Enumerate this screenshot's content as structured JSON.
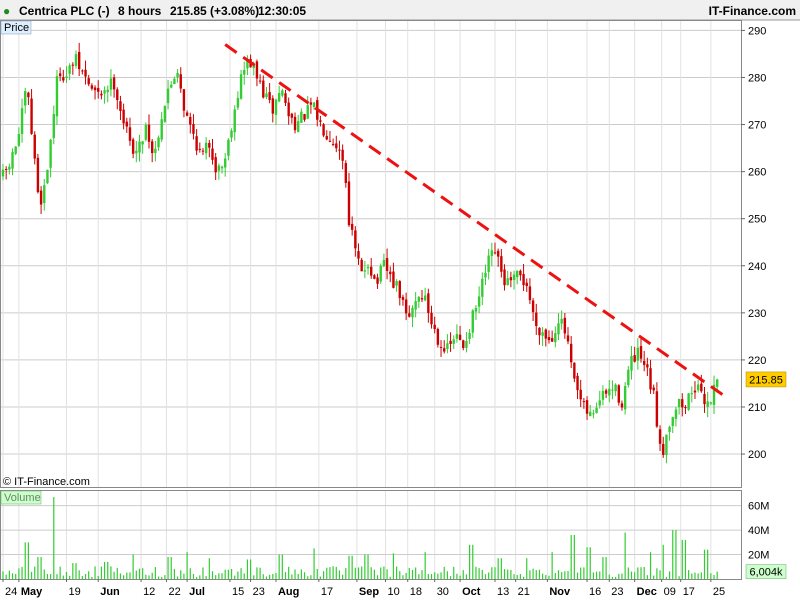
{
  "header": {
    "title": "Centrica PLC (-)",
    "timeframe": "8 hours",
    "quote": "215.85 (+3.08%)",
    "time": "12:30:05",
    "brand": "IT-Finance.com"
  },
  "labels": {
    "price_panel": "Price",
    "volume_panel": "Volume",
    "copyright": "© IT-Finance.com"
  },
  "colors": {
    "up": "#33cc33",
    "down": "#cc0000",
    "trendline": "#ee1111",
    "volume": "#33cc33",
    "price_tag": "#ffcc00",
    "volume_tag": "#ccffcc",
    "panel_label_bg": "#ddeeff",
    "volume_label_bg": "#ccffcc",
    "grid": "#cccccc"
  },
  "chart_data": [
    {
      "type": "candlestick",
      "title": "Centrica PLC (-)",
      "ylabel": "Price",
      "ylim": [
        193,
        292
      ],
      "xlim": [
        0,
        46.5
      ],
      "grid": true,
      "y_ticks": [
        200,
        210,
        220,
        230,
        240,
        250,
        260,
        270,
        280,
        290
      ],
      "x_ticks": [
        {
          "label": "24",
          "week": 0
        },
        {
          "label": "May",
          "week": 1
        },
        {
          "label": "19",
          "week": 4
        },
        {
          "label": "Jun",
          "week": 6
        },
        {
          "label": "12",
          "week": 8.7
        },
        {
          "label": "22",
          "week": 10.3
        },
        {
          "label": "Jul",
          "week": 11.6
        },
        {
          "label": "15",
          "week": 14.3
        },
        {
          "label": "23",
          "week": 15.6
        },
        {
          "label": "Aug",
          "week": 17.2
        },
        {
          "label": "17",
          "week": 19.9
        },
        {
          "label": "Sep",
          "week": 22.3
        },
        {
          "label": "10",
          "week": 24.1
        },
        {
          "label": "18",
          "week": 25.5
        },
        {
          "label": "30",
          "week": 27.2
        },
        {
          "label": "Oct",
          "week": 28.8
        },
        {
          "label": "13",
          "week": 31
        },
        {
          "label": "21",
          "week": 32.3
        },
        {
          "label": "Nov",
          "week": 34.3
        },
        {
          "label": "16",
          "week": 36.8
        },
        {
          "label": "23",
          "week": 38.2
        },
        {
          "label": "Dec",
          "week": 39.8
        },
        {
          "label": "09",
          "week": 41.5
        },
        {
          "label": "17",
          "week": 42.7
        },
        {
          "label": "25",
          "week": 44.6
        }
      ],
      "price_anchors": [
        [
          0,
          259
        ],
        [
          0.5,
          262
        ],
        [
          1,
          268
        ],
        [
          1.5,
          278
        ],
        [
          1.9,
          265
        ],
        [
          2.3,
          253
        ],
        [
          2.7,
          258
        ],
        [
          3.1,
          270
        ],
        [
          3.5,
          282
        ],
        [
          4,
          280
        ],
        [
          4.5,
          284
        ],
        [
          5,
          281
        ],
        [
          5.5,
          278
        ],
        [
          6,
          276
        ],
        [
          6.5,
          278
        ],
        [
          7,
          279
        ],
        [
          7.5,
          272
        ],
        [
          8,
          266
        ],
        [
          8.5,
          264
        ],
        [
          9,
          270
        ],
        [
          9.5,
          263
        ],
        [
          10,
          272
        ],
        [
          10.5,
          278
        ],
        [
          11,
          282
        ],
        [
          11.5,
          272
        ],
        [
          12,
          268
        ],
        [
          12.5,
          263
        ],
        [
          13,
          266
        ],
        [
          13.5,
          260
        ],
        [
          14,
          263
        ],
        [
          14.5,
          272
        ],
        [
          15,
          280
        ],
        [
          15.5,
          284
        ],
        [
          16,
          280
        ],
        [
          16.5,
          276
        ],
        [
          17,
          273
        ],
        [
          17.5,
          278
        ],
        [
          18,
          272
        ],
        [
          18.5,
          270
        ],
        [
          19,
          272
        ],
        [
          19.5,
          274
        ],
        [
          20,
          270
        ],
        [
          20.5,
          268
        ],
        [
          21,
          266
        ],
        [
          21.5,
          262
        ],
        [
          21.8,
          250
        ],
        [
          22.2,
          243
        ],
        [
          22.6,
          238
        ],
        [
          23,
          241
        ],
        [
          23.5,
          236
        ],
        [
          24,
          240
        ],
        [
          24.5,
          237
        ],
        [
          25,
          234
        ],
        [
          25.5,
          228
        ],
        [
          26,
          233
        ],
        [
          26.5,
          234
        ],
        [
          27,
          228
        ],
        [
          27.5,
          224
        ],
        [
          28,
          222
        ],
        [
          28.5,
          225
        ],
        [
          29,
          223
        ],
        [
          29.5,
          228
        ],
        [
          30,
          233
        ],
        [
          30.5,
          240
        ],
        [
          31,
          243
        ],
        [
          31.5,
          237
        ],
        [
          32,
          236
        ],
        [
          32.5,
          238
        ],
        [
          33,
          236
        ],
        [
          33.5,
          228
        ],
        [
          34,
          226
        ],
        [
          34.5,
          224
        ],
        [
          35,
          229
        ],
        [
          35.5,
          225
        ],
        [
          35.9,
          216
        ],
        [
          36.5,
          210
        ],
        [
          37,
          208
        ],
        [
          37.5,
          211
        ],
        [
          38,
          213
        ],
        [
          38.5,
          214
        ],
        [
          39,
          211
        ],
        [
          39.5,
          219
        ],
        [
          40,
          221
        ],
        [
          40.5,
          218
        ],
        [
          41,
          212
        ],
        [
          41.3,
          204
        ],
        [
          41.6,
          201
        ],
        [
          42,
          207
        ],
        [
          42.5,
          211
        ],
        [
          43,
          210
        ],
        [
          43.5,
          215
        ],
        [
          44,
          212
        ],
        [
          44.5,
          211
        ],
        [
          45,
          215.85
        ]
      ],
      "trendline": {
        "from": [
          14,
          287
        ],
        "to": [
          45.6,
          212
        ]
      },
      "last_price": 215.85,
      "last_price_label": "215.85"
    },
    {
      "type": "bar",
      "ylabel": "Volume",
      "ylim": [
        0,
        72
      ],
      "y_ticks": [
        {
          "value": 60,
          "label": "60M"
        },
        {
          "value": 40,
          "label": "40M"
        },
        {
          "value": 20,
          "label": "20M"
        }
      ],
      "last_volume": 6.004,
      "last_volume_label": "6,004k",
      "spikes": [
        [
          1.5,
          30
        ],
        [
          2.3,
          18
        ],
        [
          3.2,
          67
        ],
        [
          4.5,
          13
        ],
        [
          6.5,
          14
        ],
        [
          8.2,
          20
        ],
        [
          10.5,
          18
        ],
        [
          11.6,
          22
        ],
        [
          13,
          17
        ],
        [
          15.5,
          16
        ],
        [
          17.5,
          20
        ],
        [
          19.6,
          25
        ],
        [
          21.9,
          19
        ],
        [
          22.9,
          20
        ],
        [
          24.6,
          21
        ],
        [
          26.6,
          22
        ],
        [
          29.5,
          28
        ],
        [
          31.3,
          17
        ],
        [
          33,
          17
        ],
        [
          34.6,
          22
        ],
        [
          35.9,
          36
        ],
        [
          36.9,
          26
        ],
        [
          37.9,
          18
        ],
        [
          39.2,
          38
        ],
        [
          40.8,
          22
        ],
        [
          41.6,
          28
        ],
        [
          42.3,
          40
        ],
        [
          42.9,
          32
        ],
        [
          44.3,
          24
        ],
        [
          45,
          22
        ]
      ]
    }
  ]
}
